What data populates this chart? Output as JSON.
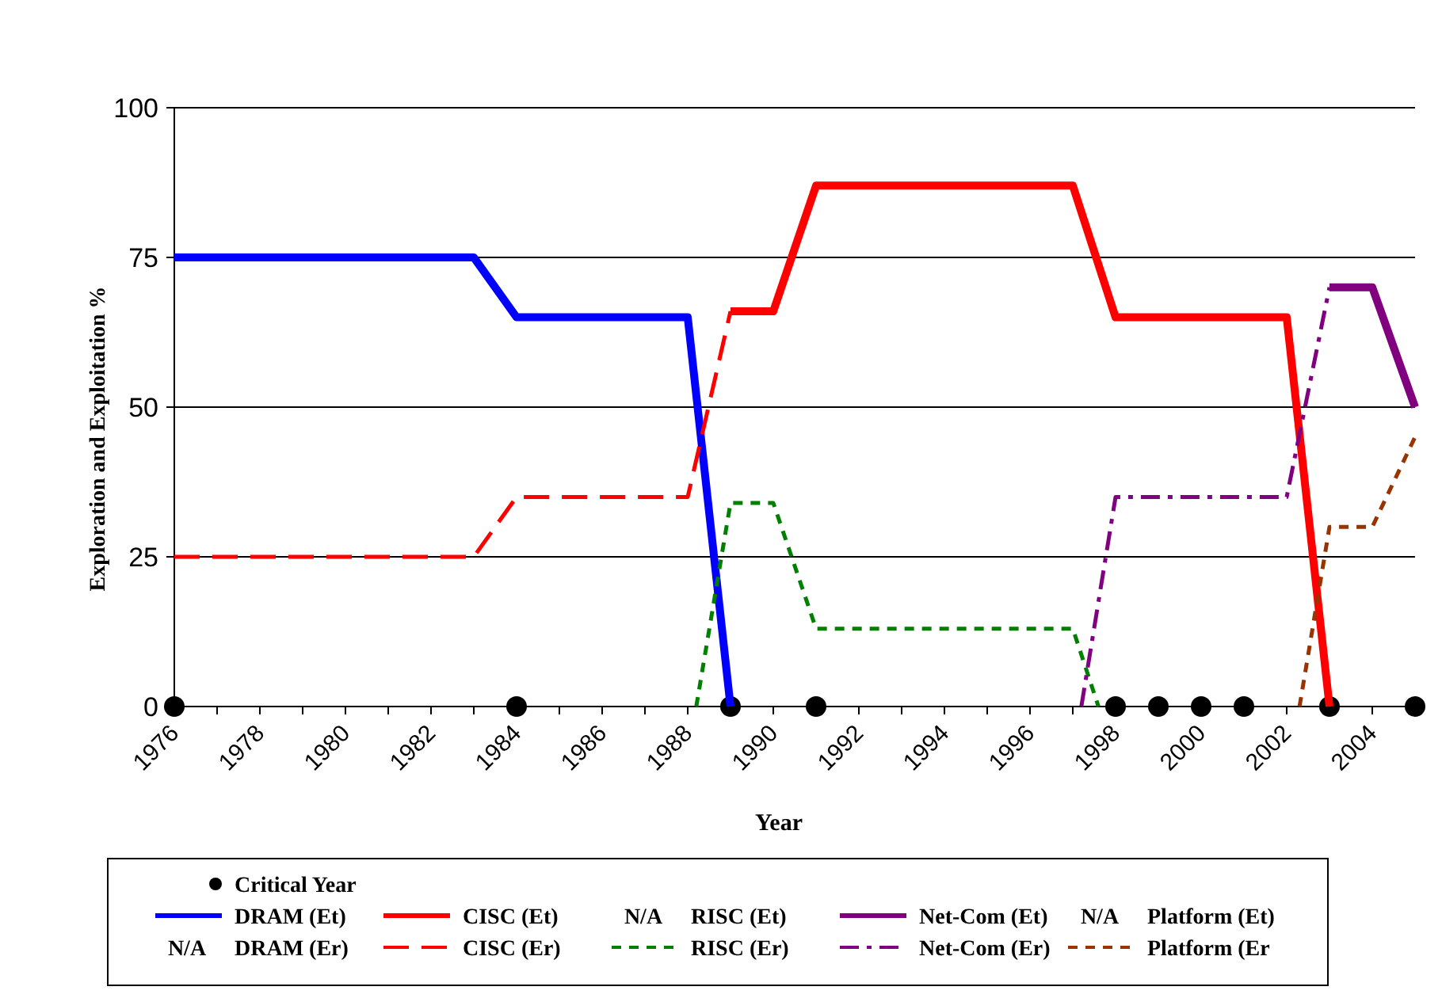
{
  "chart_data": {
    "type": "line",
    "xlabel": "Year",
    "ylabel": "Exploration and Exploitation %",
    "xlim": [
      1976,
      2005
    ],
    "xticks": [
      1976,
      1978,
      1980,
      1982,
      1984,
      1986,
      1988,
      1990,
      1992,
      1994,
      1996,
      1998,
      2000,
      2002,
      2004
    ],
    "ylim": [
      0,
      100
    ],
    "yticks": [
      0,
      25,
      50,
      75,
      100
    ],
    "grid": "y",
    "legend": "bottom",
    "annotations": [
      "N/A",
      "N/A",
      "N/A"
    ],
    "series": [
      {
        "name": "Critical Year",
        "type": "scatter",
        "marker": "circle",
        "color": "#000000",
        "x": [
          1976,
          1984,
          1989,
          1991,
          1998,
          1999,
          2000,
          2001,
          2003,
          2005
        ],
        "values": [
          0,
          0,
          0,
          0,
          0,
          0,
          0,
          0,
          0,
          0
        ]
      },
      {
        "name": "DRAM (Et)",
        "color": "#0000ff",
        "line_style": "solid",
        "x": [
          1976,
          1983,
          1984,
          1988,
          1989
        ],
        "values": [
          75,
          75,
          65,
          65,
          0
        ]
      },
      {
        "name": "DRAM (Er)"
      },
      {
        "name": "CISC (Et)",
        "color": "#ff0000",
        "line_style": "solid",
        "x": [
          1989,
          1990,
          1991,
          1997,
          1998,
          2002,
          2003
        ],
        "values": [
          66,
          66,
          87,
          87,
          65,
          65,
          0
        ]
      },
      {
        "name": "CISC (Er)",
        "color": "#ff0000",
        "line_style": "dashed",
        "x": [
          1976,
          1983,
          1984,
          1988,
          1989
        ],
        "values": [
          25,
          25,
          35,
          35,
          66
        ]
      },
      {
        "name": "RISC (Et)"
      },
      {
        "name": "RISC (Er)",
        "color": "#008000",
        "line_style": "dotted",
        "x": [
          1988.2,
          1989,
          1990,
          1991,
          1997,
          1997.6
        ],
        "values": [
          0,
          34,
          34,
          13,
          13,
          0
        ]
      },
      {
        "name": "Net-Com (Et)",
        "color": "#800080",
        "line_style": "solid",
        "x": [
          2003,
          2004,
          2005
        ],
        "values": [
          70,
          70,
          50
        ]
      },
      {
        "name": "Net-Com (Er)",
        "color": "#800080",
        "line_style": "dashdot",
        "x": [
          1997.2,
          1998,
          2002,
          2003
        ],
        "values": [
          0,
          35,
          35,
          70
        ]
      },
      {
        "name": "Platform (Et)"
      },
      {
        "name": "Platform (Er",
        "color": "#993300",
        "line_style": "dotted",
        "x": [
          2002.3,
          2003,
          2004,
          2005
        ],
        "values": [
          0,
          30,
          30,
          45
        ]
      }
    ]
  }
}
